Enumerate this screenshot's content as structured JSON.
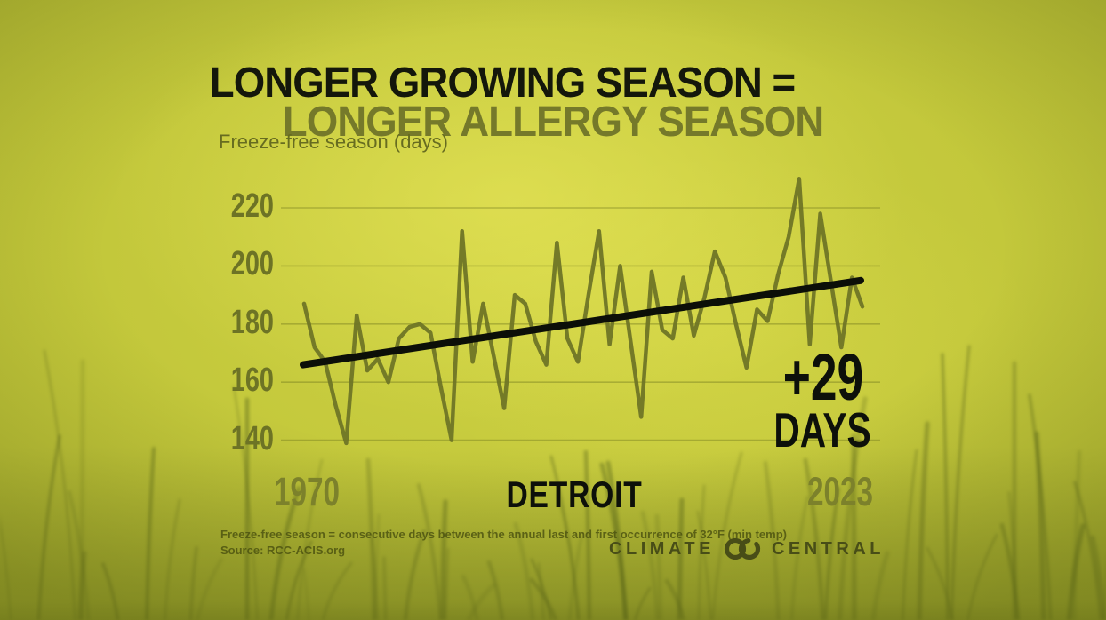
{
  "header": {
    "title_line1": "LONGER GROWING SEASON =",
    "title_line2": "LONGER ALLERGY SEASON"
  },
  "chart_data": {
    "type": "line",
    "title": "LONGER GROWING SEASON = LONGER ALLERGY SEASON",
    "ylabel": "Freeze-free season (days)",
    "location": "DETROIT",
    "x": [
      1970,
      1971,
      1972,
      1973,
      1974,
      1975,
      1976,
      1977,
      1978,
      1979,
      1980,
      1981,
      1982,
      1983,
      1984,
      1985,
      1986,
      1987,
      1988,
      1989,
      1990,
      1991,
      1992,
      1993,
      1994,
      1995,
      1996,
      1997,
      1998,
      1999,
      2000,
      2001,
      2002,
      2003,
      2004,
      2005,
      2006,
      2007,
      2008,
      2009,
      2010,
      2011,
      2012,
      2013,
      2014,
      2015,
      2016,
      2017,
      2018,
      2019,
      2020,
      2021,
      2022,
      2023
    ],
    "values": [
      187,
      172,
      167,
      152,
      139,
      183,
      164,
      168,
      160,
      175,
      179,
      180,
      177,
      158,
      140,
      212,
      167,
      187,
      169,
      151,
      190,
      187,
      174,
      166,
      208,
      175,
      167,
      190,
      212,
      173,
      200,
      174,
      148,
      198,
      178,
      175,
      196,
      176,
      189,
      205,
      196,
      180,
      165,
      185,
      181,
      197,
      210,
      230,
      173,
      218,
      195,
      172,
      196,
      186
    ],
    "yticks": [
      220,
      200,
      180,
      160,
      140
    ],
    "ylim": [
      130,
      235
    ],
    "grid": "horizontal-only",
    "legend": "none",
    "x_axis_labels": {
      "left": "1970",
      "center": "DETROIT",
      "right": "2023"
    },
    "trend": {
      "type": "linear",
      "start_value": 166,
      "end_value": 195,
      "change_label": "+29",
      "change_unit": "DAYS"
    },
    "line_color": "#6f7526",
    "trend_color": "#0c0f08"
  },
  "footer": {
    "definition": "Freeze-free season = consecutive days between the annual last and first occurrence of 32°F (min temp)",
    "source": "Source: RCC-ACIS.org"
  },
  "logo": {
    "word_left": "CLIMATE",
    "word_right": "CENTRAL"
  },
  "colors": {
    "background": "#bfc43a",
    "title_black": "#14170b",
    "accent_olive": "#75792a",
    "axis_olive": "#6d7325",
    "ink_black": "#0d100a"
  }
}
